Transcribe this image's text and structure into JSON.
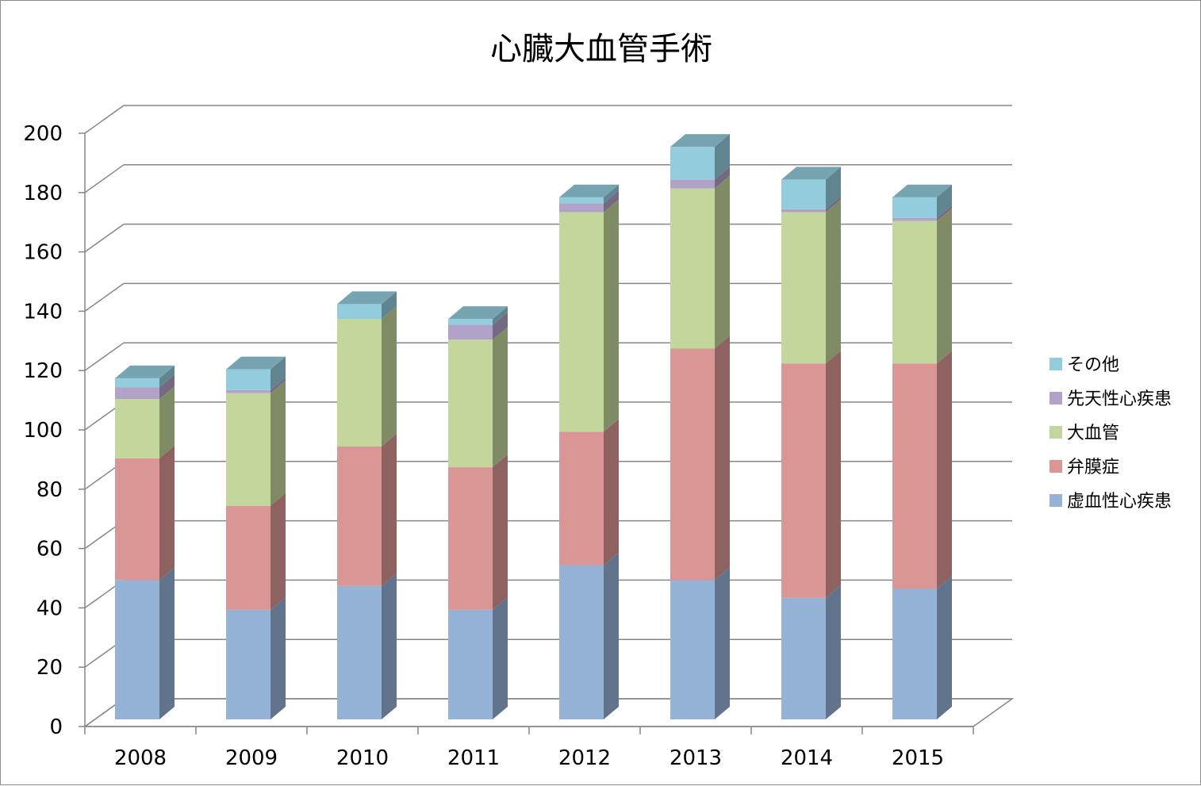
{
  "chart_data": {
    "type": "bar",
    "stacked": true,
    "three_d": true,
    "title": "心臓大血管手術",
    "xlabel": "",
    "ylabel": "",
    "categories": [
      "2008",
      "2009",
      "2010",
      "2011",
      "2012",
      "2013",
      "2014",
      "2015"
    ],
    "ylim": [
      0,
      200
    ],
    "yticks": [
      0,
      20,
      40,
      60,
      80,
      100,
      120,
      140,
      160,
      180,
      200
    ],
    "grid": true,
    "legend_position": "right",
    "series": [
      {
        "name": "虚血性心疾患",
        "color": "#95b3d7",
        "values": [
          47,
          37,
          45,
          37,
          52,
          47,
          41,
          44
        ]
      },
      {
        "name": "弁膜症",
        "color": "#d99694",
        "values": [
          41,
          35,
          47,
          48,
          45,
          78,
          79,
          76
        ]
      },
      {
        "name": "大血管",
        "color": "#c3d69b",
        "values": [
          20,
          38,
          43,
          43,
          74,
          54,
          51,
          48
        ]
      },
      {
        "name": "先天性心疾患",
        "color": "#b3a2c7",
        "values": [
          4,
          1,
          0,
          5,
          3,
          3,
          1,
          1
        ]
      },
      {
        "name": "その他",
        "color": "#93cddd",
        "values": [
          3,
          7,
          5,
          2,
          2,
          11,
          10,
          7
        ]
      }
    ]
  }
}
